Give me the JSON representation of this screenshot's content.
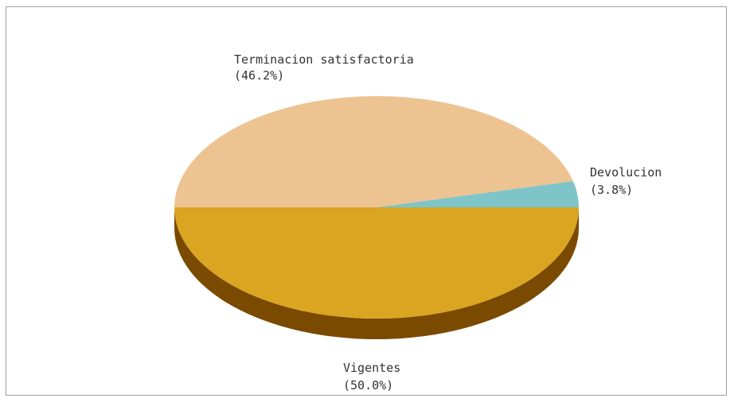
{
  "chart_data": {
    "type": "pie",
    "style": "3d",
    "start_angle_deg": 0,
    "direction": "counterclockwise",
    "slices": [
      {
        "label": "Devolucion",
        "value": 3.8,
        "percent_label": "(3.8%)",
        "color": "#7ec5c9",
        "side_color": "#4a8e92"
      },
      {
        "label": "Terminacion satisfactoria",
        "value": 46.2,
        "percent_label": "(46.2%)",
        "color": "#eec392",
        "side_color": "#b58a5a"
      },
      {
        "label": "Vigentes",
        "value": 50.0,
        "percent_label": "(50.0%)",
        "color": "#daa520",
        "side_color": "#7a4a00"
      }
    ],
    "legend": "none",
    "title": ""
  }
}
